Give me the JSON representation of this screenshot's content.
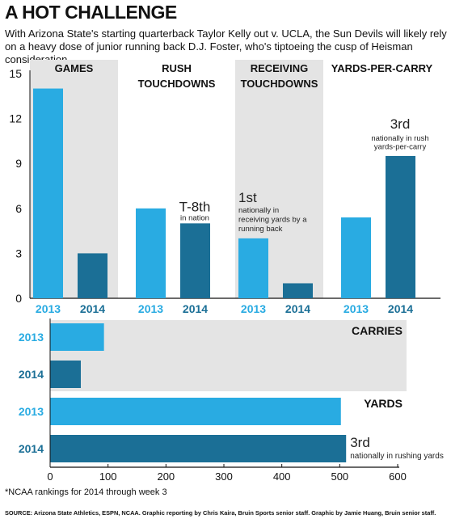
{
  "title": "A HOT CHALLENGE",
  "subtitle": "With Arizona State's starting quarterback Taylor Kelly out v. UCLA, the Sun Devils will likely rely on a heavy dose of junior running back D.J. Foster, who's tiptoeing the cusp of Heisman consideration.",
  "colors": {
    "c2013": "#29abe2",
    "c2014": "#1b6f96",
    "panel": "#e4e4e4"
  },
  "chart_data": [
    {
      "type": "bar",
      "ylim": [
        0,
        15
      ],
      "yticks": [
        0,
        3,
        6,
        9,
        12,
        15
      ],
      "panels": [
        {
          "label": "GAMES",
          "categories": [
            "2013",
            "2014"
          ],
          "values": [
            14,
            3
          ],
          "shaded": true,
          "annotations": []
        },
        {
          "label": "RUSH TOUCHDOWNS",
          "categories": [
            "2013",
            "2014"
          ],
          "values": [
            6,
            5
          ],
          "shaded": false,
          "annotations": [
            {
              "bar": 1,
              "big": "T-8th",
              "small": "in nation"
            }
          ]
        },
        {
          "label": "RECEIVING TOUCHDOWNS",
          "categories": [
            "2013",
            "2014"
          ],
          "values": [
            4,
            1
          ],
          "shaded": true,
          "annotations": [
            {
              "bar": 0,
              "big": "1st",
              "small": "nationally in receiving yards by a running back"
            }
          ]
        },
        {
          "label": "YARDS-PER-CARRY",
          "categories": [
            "2013",
            "2014"
          ],
          "values": [
            5.4,
            9.5
          ],
          "shaded": false,
          "annotations": [
            {
              "bar": 1,
              "big": "3rd",
              "small": "nationally in rush yards-per-carry"
            }
          ]
        }
      ]
    },
    {
      "type": "bar",
      "orientation": "horizontal",
      "xlim": [
        0,
        600
      ],
      "xticks": [
        0,
        100,
        200,
        300,
        400,
        500,
        600
      ],
      "groups": [
        {
          "label": "CARRIES",
          "categories": [
            "2013",
            "2014"
          ],
          "values": [
            93,
            53
          ],
          "shaded": true
        },
        {
          "label": "YARDS",
          "categories": [
            "2013",
            "2014"
          ],
          "values": [
            502,
            511
          ],
          "shaded": false,
          "annotation": {
            "bar": 1,
            "big": "3rd",
            "small": "nationally in rushing yards"
          }
        }
      ]
    }
  ],
  "footnote": "*NCAA rankings for 2014 through week 3",
  "source": "SOURCE: Arizona State Athletics, ESPN, NCAA. Graphic reporting by Chris Kaira, Bruin Sports senior staff. Graphic by Jamie Huang, Bruin senior staff."
}
